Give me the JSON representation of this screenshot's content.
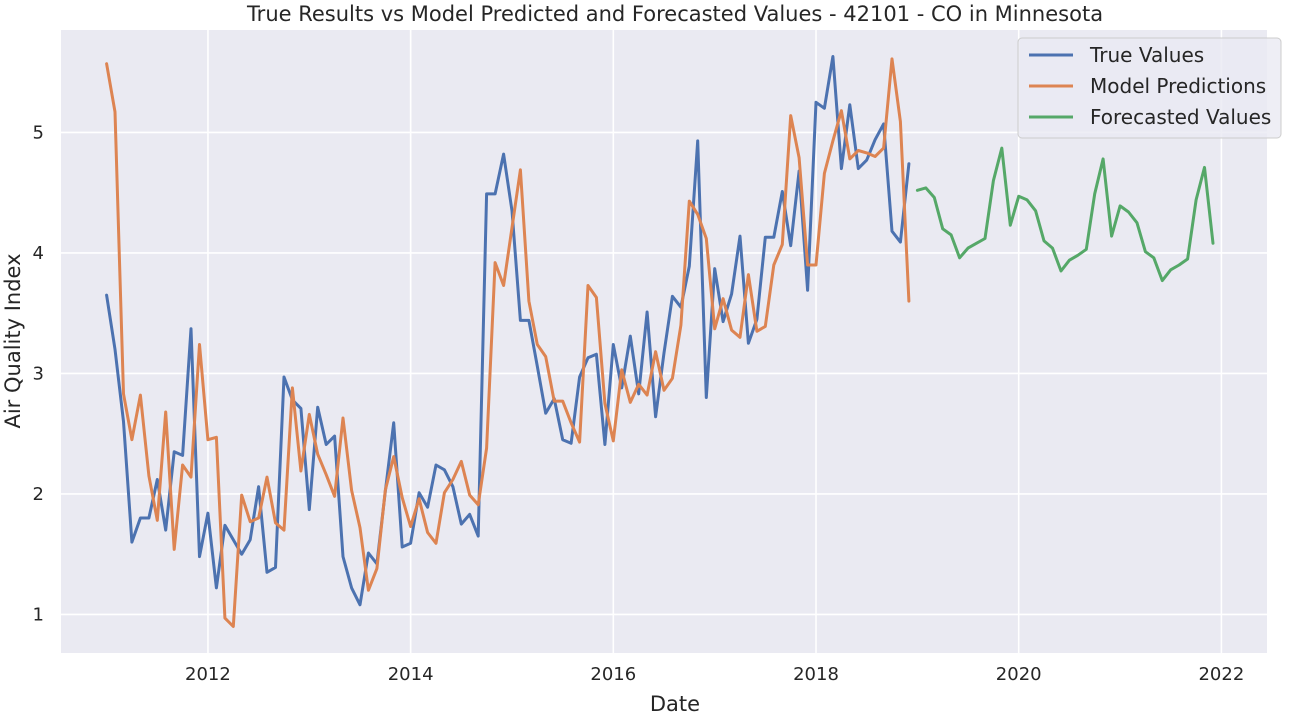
{
  "chart_data": {
    "type": "line",
    "title": "True Results vs Model Predicted and Forecasted Values - 42101 - CO in Minnesota",
    "xlabel": "Date",
    "ylabel": "Air Quality Index",
    "xlim": [
      2010.55,
      2022.45
    ],
    "ylim": [
      0.68,
      5.85
    ],
    "x_ticks": [
      2012,
      2014,
      2016,
      2018,
      2020,
      2022
    ],
    "y_ticks": [
      1,
      2,
      3,
      4,
      5
    ],
    "grid": true,
    "legend_position": "top-right",
    "series": [
      {
        "name": "True Values",
        "color": "#4c72b0",
        "x": [
          2011.0,
          2011.083,
          2011.167,
          2011.25,
          2011.333,
          2011.417,
          2011.5,
          2011.583,
          2011.667,
          2011.75,
          2011.833,
          2011.917,
          2012.0,
          2012.083,
          2012.167,
          2012.25,
          2012.333,
          2012.417,
          2012.5,
          2012.583,
          2012.667,
          2012.75,
          2012.833,
          2012.917,
          2013.0,
          2013.083,
          2013.167,
          2013.25,
          2013.333,
          2013.417,
          2013.5,
          2013.583,
          2013.667,
          2013.75,
          2013.833,
          2013.917,
          2014.0,
          2014.083,
          2014.167,
          2014.25,
          2014.333,
          2014.417,
          2014.5,
          2014.583,
          2014.667,
          2014.75,
          2014.833,
          2014.917,
          2015.0,
          2015.083,
          2015.167,
          2015.25,
          2015.333,
          2015.417,
          2015.5,
          2015.583,
          2015.667,
          2015.75,
          2015.833,
          2015.917,
          2016.0,
          2016.083,
          2016.167,
          2016.25,
          2016.333,
          2016.417,
          2016.5,
          2016.583,
          2016.667,
          2016.75,
          2016.833,
          2016.917,
          2017.0,
          2017.083,
          2017.167,
          2017.25,
          2017.333,
          2017.417,
          2017.5,
          2017.583,
          2017.667,
          2017.75,
          2017.833,
          2017.917,
          2018.0,
          2018.083,
          2018.167,
          2018.25,
          2018.333,
          2018.417,
          2018.5,
          2018.583,
          2018.667,
          2018.75,
          2018.833,
          2018.917
        ],
        "values": [
          3.65,
          3.2,
          2.6,
          1.6,
          1.8,
          1.8,
          2.12,
          1.7,
          2.35,
          2.32,
          3.37,
          1.48,
          1.84,
          1.22,
          1.74,
          1.62,
          1.5,
          1.62,
          2.06,
          1.35,
          1.39,
          2.97,
          2.78,
          2.71,
          1.87,
          2.72,
          2.41,
          2.48,
          1.48,
          1.22,
          1.08,
          1.51,
          1.42,
          2.02,
          2.59,
          1.56,
          1.59,
          2.01,
          1.89,
          2.24,
          2.2,
          2.06,
          1.75,
          1.83,
          1.65,
          4.49,
          4.49,
          4.82,
          4.35,
          3.44,
          3.44,
          3.06,
          2.67,
          2.79,
          2.45,
          2.42,
          2.97,
          3.13,
          3.16,
          2.41,
          3.24,
          2.88,
          3.31,
          2.83,
          3.51,
          2.64,
          3.17,
          3.64,
          3.55,
          3.89,
          4.93,
          2.8,
          3.87,
          3.43,
          3.66,
          4.14,
          3.25,
          3.45,
          4.13,
          4.13,
          4.51,
          4.06,
          4.68,
          3.69,
          5.25,
          5.2,
          5.63,
          4.7,
          5.23,
          4.7,
          4.77,
          4.94,
          5.07,
          4.18,
          4.09,
          4.74
        ]
      },
      {
        "name": "Model Predictions",
        "color": "#dd8452",
        "x": [
          2011.0,
          2011.083,
          2011.167,
          2011.25,
          2011.333,
          2011.417,
          2011.5,
          2011.583,
          2011.667,
          2011.75,
          2011.833,
          2011.917,
          2012.0,
          2012.083,
          2012.167,
          2012.25,
          2012.333,
          2012.417,
          2012.5,
          2012.583,
          2012.667,
          2012.75,
          2012.833,
          2012.917,
          2013.0,
          2013.083,
          2013.167,
          2013.25,
          2013.333,
          2013.417,
          2013.5,
          2013.583,
          2013.667,
          2013.75,
          2013.833,
          2013.917,
          2014.0,
          2014.083,
          2014.167,
          2014.25,
          2014.333,
          2014.417,
          2014.5,
          2014.583,
          2014.667,
          2014.75,
          2014.833,
          2014.917,
          2015.0,
          2015.083,
          2015.167,
          2015.25,
          2015.333,
          2015.417,
          2015.5,
          2015.583,
          2015.667,
          2015.75,
          2015.833,
          2015.917,
          2016.0,
          2016.083,
          2016.167,
          2016.25,
          2016.333,
          2016.417,
          2016.5,
          2016.583,
          2016.667,
          2016.75,
          2016.833,
          2016.917,
          2017.0,
          2017.083,
          2017.167,
          2017.25,
          2017.333,
          2017.417,
          2017.5,
          2017.583,
          2017.667,
          2017.75,
          2017.833,
          2017.917,
          2018.0,
          2018.083,
          2018.167,
          2018.25,
          2018.333,
          2018.417,
          2018.5,
          2018.583,
          2018.667,
          2018.75,
          2018.833,
          2018.917
        ],
        "values": [
          5.57,
          5.17,
          2.83,
          2.45,
          2.82,
          2.15,
          1.78,
          2.68,
          1.54,
          2.24,
          2.14,
          3.24,
          2.45,
          2.47,
          0.97,
          0.9,
          1.99,
          1.77,
          1.8,
          2.14,
          1.76,
          1.7,
          2.88,
          2.19,
          2.66,
          2.33,
          2.16,
          1.98,
          2.63,
          2.03,
          1.72,
          1.2,
          1.38,
          2.03,
          2.31,
          1.97,
          1.73,
          1.96,
          1.68,
          1.59,
          2.01,
          2.12,
          2.27,
          1.99,
          1.91,
          2.38,
          3.92,
          3.73,
          4.21,
          4.69,
          3.6,
          3.24,
          3.14,
          2.77,
          2.77,
          2.59,
          2.43,
          3.73,
          3.63,
          2.75,
          2.44,
          3.03,
          2.76,
          2.91,
          2.82,
          3.18,
          2.86,
          2.96,
          3.4,
          4.43,
          4.32,
          4.12,
          3.37,
          3.62,
          3.36,
          3.3,
          3.82,
          3.35,
          3.39,
          3.9,
          4.07,
          5.14,
          4.79,
          3.9,
          3.9,
          4.66,
          4.93,
          5.18,
          4.78,
          4.85,
          4.83,
          4.8,
          4.87,
          5.61,
          5.09,
          3.6
        ]
      },
      {
        "name": "Forecasted Values",
        "color": "#55a868",
        "x": [
          2019.0,
          2019.083,
          2019.167,
          2019.25,
          2019.333,
          2019.417,
          2019.5,
          2019.583,
          2019.667,
          2019.75,
          2019.833,
          2019.917,
          2020.0,
          2020.083,
          2020.167,
          2020.25,
          2020.333,
          2020.417,
          2020.5,
          2020.583,
          2020.667,
          2020.75,
          2020.833,
          2020.917,
          2021.0,
          2021.083,
          2021.167,
          2021.25,
          2021.333,
          2021.417,
          2021.5,
          2021.583,
          2021.667,
          2021.75,
          2021.833,
          2021.917
        ],
        "values": [
          4.52,
          4.54,
          4.46,
          4.2,
          4.15,
          3.96,
          4.04,
          4.08,
          4.12,
          4.6,
          4.87,
          4.23,
          4.47,
          4.44,
          4.35,
          4.1,
          4.04,
          3.85,
          3.94,
          3.98,
          4.03,
          4.49,
          4.78,
          4.14,
          4.39,
          4.34,
          4.25,
          4.01,
          3.96,
          3.77,
          3.86,
          3.9,
          3.95,
          4.44,
          4.71,
          4.08
        ]
      }
    ]
  }
}
